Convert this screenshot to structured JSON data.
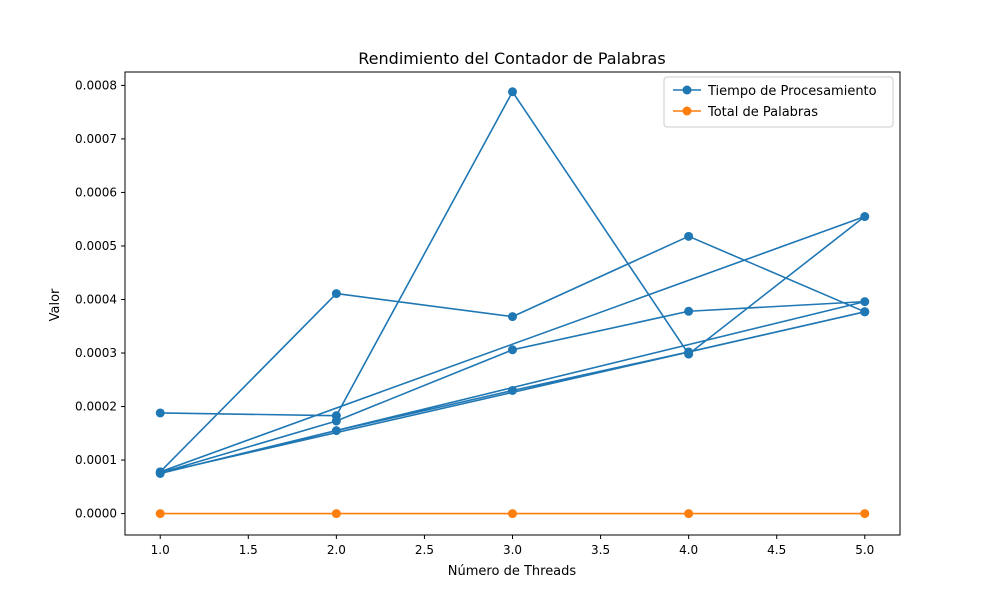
{
  "chart_data": {
    "type": "line",
    "title": "Rendimiento del Contador de Palabras",
    "xlabel": "Número de Threads",
    "ylabel": "Valor",
    "xlim": [
      0.8,
      5.2
    ],
    "ylim": [
      -4e-05,
      0.000825
    ],
    "xticks": [
      1.0,
      1.5,
      2.0,
      2.5,
      3.0,
      3.5,
      4.0,
      4.5,
      5.0
    ],
    "xtick_labels": [
      "1.0",
      "1.5",
      "2.0",
      "2.5",
      "3.0",
      "3.5",
      "4.0",
      "4.5",
      "5.0"
    ],
    "yticks": [
      0.0,
      0.0001,
      0.0002,
      0.0003,
      0.0004,
      0.0005,
      0.0006,
      0.0007,
      0.0008
    ],
    "ytick_labels": [
      "0.0000",
      "0.0001",
      "0.0002",
      "0.0003",
      "0.0004",
      "0.0005",
      "0.0006",
      "0.0007",
      "0.0008"
    ],
    "grid": false,
    "legend_position": "top-right",
    "series": [
      {
        "name": "Tiempo de Procesamiento",
        "color": "#1f77b4",
        "x": [
          1,
          2,
          3,
          4,
          5,
          1,
          2,
          3,
          4,
          5,
          1,
          2,
          3,
          4,
          5,
          1,
          2,
          3,
          4,
          5
        ],
        "y": [
          0.000188,
          0.000183,
          0.000788,
          0.000298,
          0.000555,
          7.8e-05,
          0.000411,
          0.000368,
          0.000518,
          0.000377,
          7.6e-05,
          0.000173,
          0.000306,
          0.000378,
          0.000396,
          7.5e-05,
          0.000155,
          0.00023,
          0.000302,
          0.000377
        ]
      },
      {
        "name": "Total de Palabras",
        "color": "#ff7f0e",
        "x": [
          1,
          2,
          3,
          4,
          5
        ],
        "y": [
          0,
          0,
          0,
          0,
          0
        ]
      }
    ]
  }
}
